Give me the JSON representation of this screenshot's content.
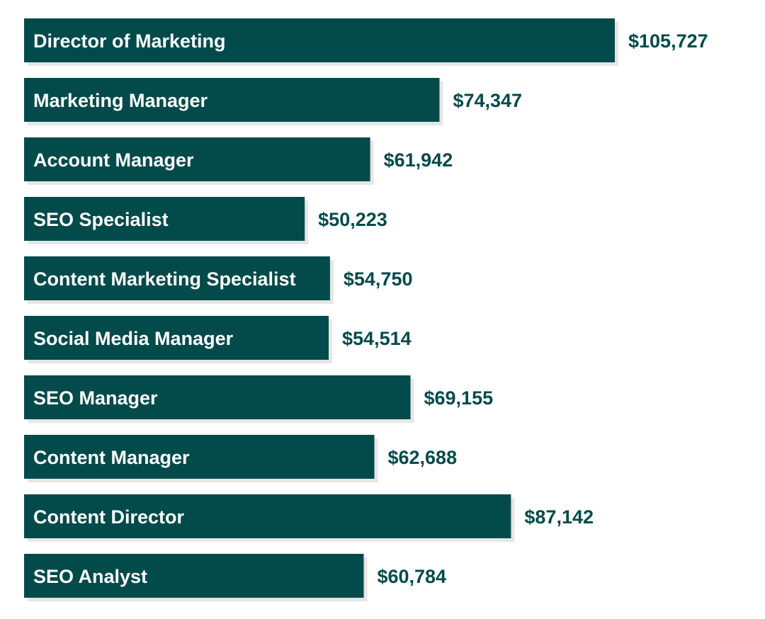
{
  "chart_data": {
    "type": "bar",
    "orientation": "horizontal",
    "title": "",
    "xlabel": "",
    "ylabel": "",
    "categories": [
      "Director of Marketing",
      "Marketing Manager",
      "Account Manager",
      "SEO Specialist",
      "Content Marketing Specialist",
      "Social Media Manager",
      "SEO Manager",
      "Content Manager",
      "Content Director",
      "SEO Analyst"
    ],
    "values": [
      105727,
      74347,
      61942,
      50223,
      54750,
      54514,
      69155,
      62688,
      87142,
      60784
    ],
    "value_labels": [
      "$105,727",
      "$74,347",
      "$61,942",
      "$50,223",
      "$54,750",
      "$54,514",
      "$69,155",
      "$62,688",
      "$87,142",
      "$60,784"
    ],
    "grid": false,
    "legend": "none",
    "bar_color": "#034a4a",
    "value_label_color": "#034a4a"
  }
}
